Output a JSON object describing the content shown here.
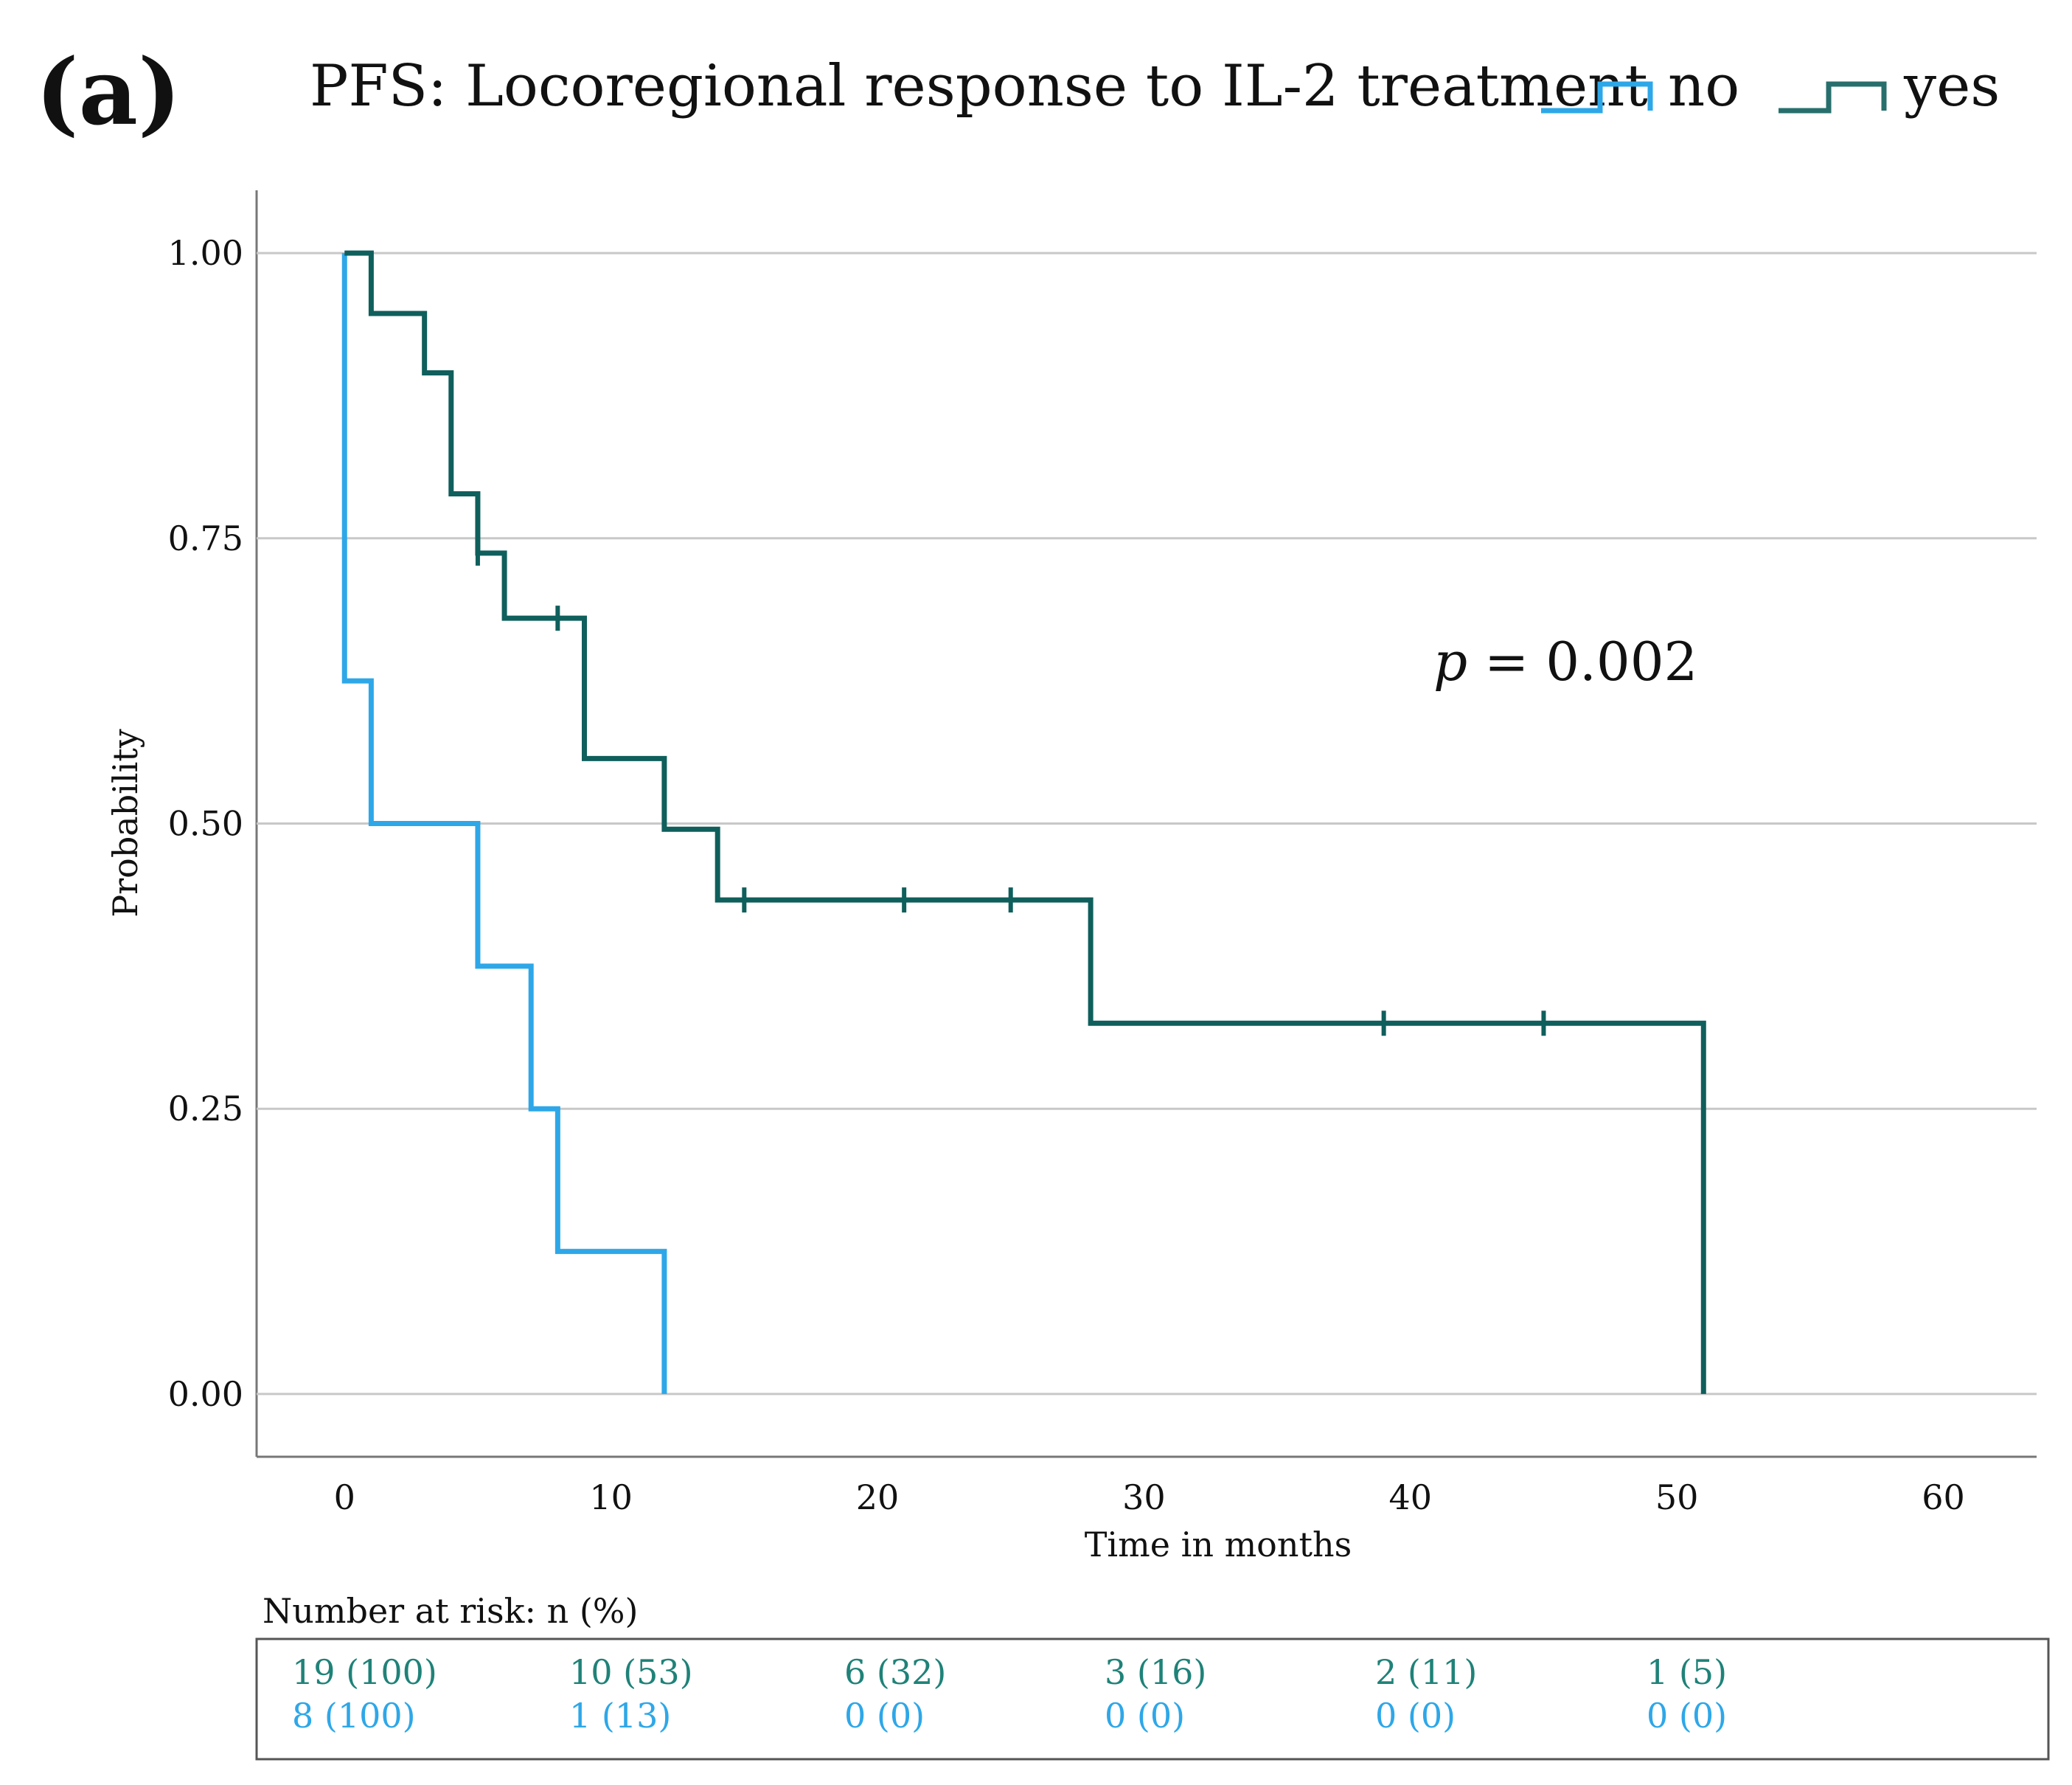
{
  "panel_label": "(a)",
  "legend": {
    "title": "PFS: Locoregional response to IL-2 treatment",
    "items": [
      {
        "label": "no",
        "color": "#2ea7e8"
      },
      {
        "label": "yes",
        "color": "#0f5f5c"
      }
    ]
  },
  "annotation": {
    "p_symbol": "p",
    "p_text": " = 0.002"
  },
  "risk_table": {
    "title": "Number at risk: n (%)",
    "rows": [
      {
        "group": "yes",
        "color": "#1f8278",
        "cells": [
          "19 (100)",
          "10 (53)",
          "6 (32)",
          "3 (16)",
          "2 (11)",
          "1 (5)"
        ]
      },
      {
        "group": "no",
        "color": "#2ea7e8",
        "cells": [
          "8 (100)",
          "1 (13)",
          "0 (0)",
          "0 (0)",
          "0 (0)",
          "0 (0)"
        ]
      }
    ]
  },
  "chart_data": {
    "type": "line",
    "subtype": "kaplan-meier-step",
    "title": "PFS: Locoregional response to IL-2 treatment",
    "xlabel": "Time in months",
    "ylabel": "Probability",
    "xlim": [
      -3.3,
      63.5
    ],
    "ylim": [
      -0.055,
      1.055
    ],
    "xticks": [
      0,
      10,
      20,
      30,
      40,
      50,
      60
    ],
    "xtick_labels": [
      "0",
      "10",
      "20",
      "30",
      "40",
      "50",
      "60"
    ],
    "yticks": [
      0.0,
      0.25,
      0.5,
      0.75,
      1.0
    ],
    "ytick_labels": [
      "0.00",
      "0.25",
      "0.50",
      "0.75",
      "1.00"
    ],
    "grid": "horizontal",
    "series": [
      {
        "name": "no",
        "color": "#2ea7e8",
        "steps": [
          [
            0,
            1.0
          ],
          [
            0,
            0.625
          ],
          [
            1,
            0.5
          ],
          [
            5,
            0.375
          ],
          [
            7,
            0.25
          ],
          [
            8,
            0.125
          ],
          [
            12,
            0.0
          ]
        ],
        "censored": []
      },
      {
        "name": "yes",
        "color": "#0f5f5c",
        "steps": [
          [
            0,
            1.0
          ],
          [
            1,
            0.947
          ],
          [
            3,
            0.895
          ],
          [
            4,
            0.789
          ],
          [
            5,
            0.737
          ],
          [
            6,
            0.68
          ],
          [
            9,
            0.557
          ],
          [
            12,
            0.495
          ],
          [
            14,
            0.433
          ],
          [
            28,
            0.325
          ],
          [
            51,
            0.0
          ]
        ],
        "censored": [
          [
            5,
            0.737
          ],
          [
            8,
            0.68
          ],
          [
            15,
            0.433
          ],
          [
            21,
            0.433
          ],
          [
            25,
            0.433
          ],
          [
            39,
            0.325
          ],
          [
            45,
            0.325
          ]
        ]
      }
    ]
  }
}
